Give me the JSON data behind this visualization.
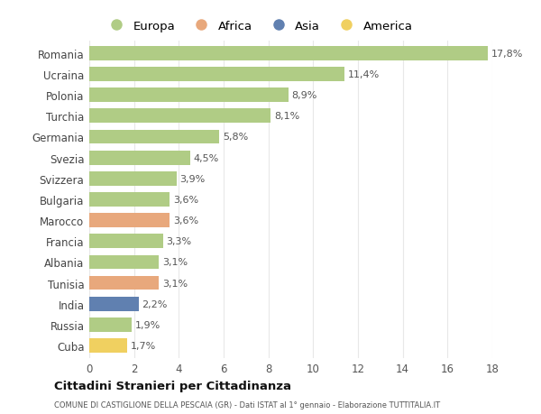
{
  "countries": [
    "Romania",
    "Ucraina",
    "Polonia",
    "Turchia",
    "Germania",
    "Svezia",
    "Svizzera",
    "Bulgaria",
    "Marocco",
    "Francia",
    "Albania",
    "Tunisia",
    "India",
    "Russia",
    "Cuba"
  ],
  "values": [
    17.8,
    11.4,
    8.9,
    8.1,
    5.8,
    4.5,
    3.9,
    3.6,
    3.6,
    3.3,
    3.1,
    3.1,
    2.2,
    1.9,
    1.7
  ],
  "labels": [
    "17,8%",
    "11,4%",
    "8,9%",
    "8,1%",
    "5,8%",
    "4,5%",
    "3,9%",
    "3,6%",
    "3,6%",
    "3,3%",
    "3,1%",
    "3,1%",
    "2,2%",
    "1,9%",
    "1,7%"
  ],
  "continents": [
    "Europa",
    "Europa",
    "Europa",
    "Europa",
    "Europa",
    "Europa",
    "Europa",
    "Europa",
    "Africa",
    "Europa",
    "Europa",
    "Africa",
    "Asia",
    "Europa",
    "America"
  ],
  "colors": {
    "Europa": "#b0cc85",
    "Africa": "#e8a87c",
    "Asia": "#6080b0",
    "America": "#f0d060"
  },
  "title": "Cittadini Stranieri per Cittadinanza",
  "subtitle": "COMUNE DI CASTIGLIONE DELLA PESCAIA (GR) - Dati ISTAT al 1° gennaio - Elaborazione TUTTITALIA.IT",
  "xlim": [
    0,
    18
  ],
  "xticks": [
    0,
    2,
    4,
    6,
    8,
    10,
    12,
    14,
    16,
    18
  ],
  "background_color": "#ffffff",
  "grid_color": "#e8e8e8",
  "bar_height": 0.68,
  "legend_order": [
    "Europa",
    "Africa",
    "Asia",
    "America"
  ]
}
